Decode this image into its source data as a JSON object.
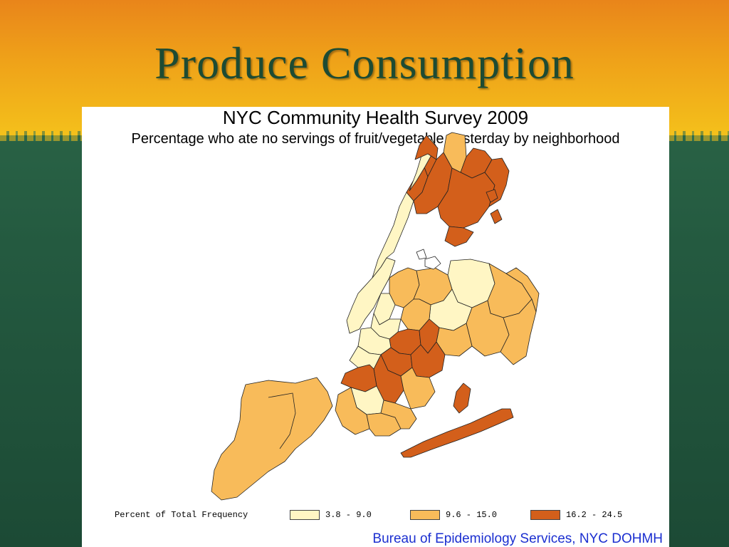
{
  "slide": {
    "title": "Produce Consumption"
  },
  "map": {
    "title": "NYC Community Health Survey 2009",
    "subtitle": "Percentage who ate no servings of fruit/vegetable yesterday by neighborhood",
    "legend_title": "Percent of Total Frequency",
    "legend": [
      {
        "label": "3.8 - 9.0",
        "color": "#fff6c4"
      },
      {
        "label": "9.6 - 15.0",
        "color": "#f8bb5a"
      },
      {
        "label": "16.2 - 24.5",
        "color": "#d35f1b"
      }
    ],
    "credit": "Bureau of Epidemiology Services, NYC DOHMH"
  }
}
